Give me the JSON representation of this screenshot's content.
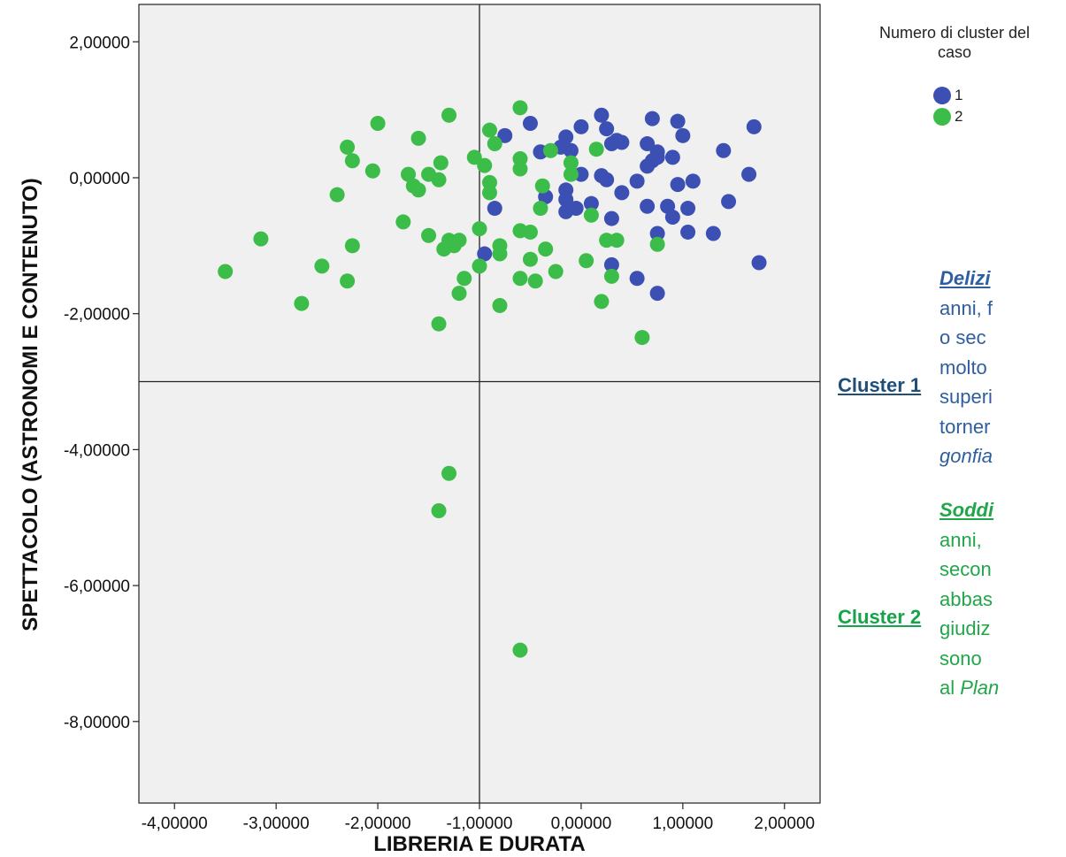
{
  "chart_data": {
    "type": "scatter",
    "xlabel": "LIBRERIA E DURATA",
    "ylabel": "SPETTACOLO (ASTRONOMI E CONTENUTO)",
    "xlim": [
      -4.35,
      2.35
    ],
    "ylim": [
      -9.2,
      2.55
    ],
    "x_ticks": [
      -4,
      -3,
      -2,
      -1,
      0,
      1,
      2
    ],
    "y_ticks": [
      2,
      0,
      -2,
      -4,
      -6,
      -8
    ],
    "x_tick_labels": [
      "-4,00000",
      "-3,00000",
      "-2,00000",
      "-1,00000",
      "0,00000",
      "1,00000",
      "2,00000"
    ],
    "y_tick_labels": [
      "2,00000",
      "0,00000",
      "-2,00000",
      "-4,00000",
      "-6,00000",
      "-8,00000"
    ],
    "reference_lines": {
      "x": -1.0,
      "y": -3.0
    },
    "grid": false,
    "legend": {
      "title": "Numero di cluster del caso",
      "placement": "top-right"
    },
    "series": [
      {
        "name": "1",
        "color": "#3c50b4",
        "points": [
          [
            -0.5,
            0.8
          ],
          [
            -0.75,
            0.62
          ],
          [
            -0.4,
            0.38
          ],
          [
            -0.2,
            0.45
          ],
          [
            -0.15,
            0.6
          ],
          [
            -0.1,
            0.4
          ],
          [
            0.0,
            0.75
          ],
          [
            0.2,
            0.92
          ],
          [
            0.25,
            0.72
          ],
          [
            0.3,
            0.5
          ],
          [
            0.35,
            0.55
          ],
          [
            0.4,
            0.52
          ],
          [
            0.65,
            0.5
          ],
          [
            0.7,
            0.87
          ],
          [
            0.75,
            0.38
          ],
          [
            0.95,
            0.83
          ],
          [
            1.0,
            0.62
          ],
          [
            1.4,
            0.4
          ],
          [
            1.7,
            0.75
          ],
          [
            -0.85,
            -0.45
          ],
          [
            -0.35,
            -0.28
          ],
          [
            -0.15,
            -0.18
          ],
          [
            -0.15,
            -0.32
          ],
          [
            -0.15,
            -0.5
          ],
          [
            -0.05,
            -0.45
          ],
          [
            0.1,
            -0.38
          ],
          [
            0.2,
            0.03
          ],
          [
            0.25,
            -0.03
          ],
          [
            0.3,
            -0.6
          ],
          [
            0.4,
            -0.22
          ],
          [
            0.55,
            -0.05
          ],
          [
            0.65,
            0.17
          ],
          [
            0.7,
            0.25
          ],
          [
            0.75,
            0.3
          ],
          [
            0.65,
            -0.42
          ],
          [
            0.75,
            -0.82
          ],
          [
            0.85,
            -0.42
          ],
          [
            0.9,
            -0.58
          ],
          [
            0.95,
            -0.1
          ],
          [
            1.05,
            -0.45
          ],
          [
            1.1,
            -0.05
          ],
          [
            1.05,
            -0.8
          ],
          [
            1.3,
            -0.82
          ],
          [
            1.45,
            -0.35
          ],
          [
            1.65,
            0.05
          ],
          [
            1.75,
            -1.25
          ],
          [
            0.3,
            -1.28
          ],
          [
            0.55,
            -1.48
          ],
          [
            0.75,
            -1.7
          ],
          [
            -0.95,
            -1.12
          ],
          [
            0.9,
            0.3
          ],
          [
            0.0,
            0.05
          ]
        ]
      },
      {
        "name": "2",
        "color": "#3cbc48",
        "points": [
          [
            -3.5,
            -1.38
          ],
          [
            -3.15,
            -0.9
          ],
          [
            -2.75,
            -1.85
          ],
          [
            -2.55,
            -1.3
          ],
          [
            -2.4,
            -0.25
          ],
          [
            -2.3,
            0.45
          ],
          [
            -2.25,
            0.25
          ],
          [
            -2.25,
            -1.0
          ],
          [
            -2.3,
            -1.52
          ],
          [
            -2.05,
            0.1
          ],
          [
            -2.0,
            0.8
          ],
          [
            -1.75,
            -0.65
          ],
          [
            -1.7,
            0.05
          ],
          [
            -1.65,
            -0.12
          ],
          [
            -1.6,
            0.58
          ],
          [
            -1.6,
            -0.18
          ],
          [
            -1.5,
            0.05
          ],
          [
            -1.5,
            -0.85
          ],
          [
            -1.4,
            -0.03
          ],
          [
            -1.38,
            0.22
          ],
          [
            -1.3,
            0.92
          ],
          [
            -1.35,
            -1.05
          ],
          [
            -1.3,
            -0.92
          ],
          [
            -1.25,
            -1.0
          ],
          [
            -1.2,
            -0.92
          ],
          [
            -1.2,
            -1.7
          ],
          [
            -1.15,
            -1.48
          ],
          [
            -1.4,
            -2.15
          ],
          [
            -1.05,
            0.3
          ],
          [
            -1.0,
            -0.75
          ],
          [
            -1.0,
            -1.3
          ],
          [
            -0.95,
            0.18
          ],
          [
            -0.9,
            -0.07
          ],
          [
            -0.9,
            -0.22
          ],
          [
            -0.9,
            0.7
          ],
          [
            -0.85,
            0.5
          ],
          [
            -0.8,
            -1.0
          ],
          [
            -0.8,
            -1.12
          ],
          [
            -0.8,
            -1.88
          ],
          [
            -0.6,
            1.03
          ],
          [
            -0.6,
            0.28
          ],
          [
            -0.6,
            0.13
          ],
          [
            -0.6,
            -0.78
          ],
          [
            -0.6,
            -1.48
          ],
          [
            -0.5,
            -0.8
          ],
          [
            -0.5,
            -1.2
          ],
          [
            -0.45,
            -1.52
          ],
          [
            -0.4,
            -0.45
          ],
          [
            -0.38,
            -0.12
          ],
          [
            -0.35,
            -1.05
          ],
          [
            -0.3,
            0.4
          ],
          [
            -0.25,
            -1.38
          ],
          [
            -0.1,
            0.22
          ],
          [
            -0.1,
            0.05
          ],
          [
            0.05,
            -1.22
          ],
          [
            0.1,
            -0.55
          ],
          [
            0.15,
            0.42
          ],
          [
            0.25,
            -0.92
          ],
          [
            0.2,
            -1.82
          ],
          [
            0.3,
            -1.45
          ],
          [
            0.35,
            -0.92
          ],
          [
            0.6,
            -2.35
          ],
          [
            0.75,
            -0.98
          ],
          [
            -1.3,
            -4.35
          ],
          [
            -1.4,
            -4.9
          ],
          [
            -0.6,
            -6.95
          ]
        ]
      }
    ]
  },
  "legend": {
    "title_line1": "Numero di cluster del",
    "title_line2": "caso",
    "items": [
      {
        "label": "1",
        "color": "#3c50b4"
      },
      {
        "label": "2",
        "color": "#3cbc48"
      }
    ]
  },
  "clusters": [
    {
      "label": "Cluster 1",
      "color": "#1f4e79",
      "text_color": "#2e5e9e",
      "head_color": "#2e5e9e",
      "heading": "Delizi",
      "lines": [
        "anni, f",
        "o  sec",
        "molto",
        "superi",
        "torner"
      ],
      "last_line_italic": "gonfia"
    },
    {
      "label": "Cluster 2",
      "color": "#16a34a",
      "text_color": "#21a64a",
      "head_color": "#21a64a",
      "heading": "Soddi",
      "lines": [
        "anni,",
        "secon",
        "abbas",
        "giudiz",
        "sono"
      ],
      "last_line_prefix": "al ",
      "last_line_italic": "Plan"
    }
  ]
}
